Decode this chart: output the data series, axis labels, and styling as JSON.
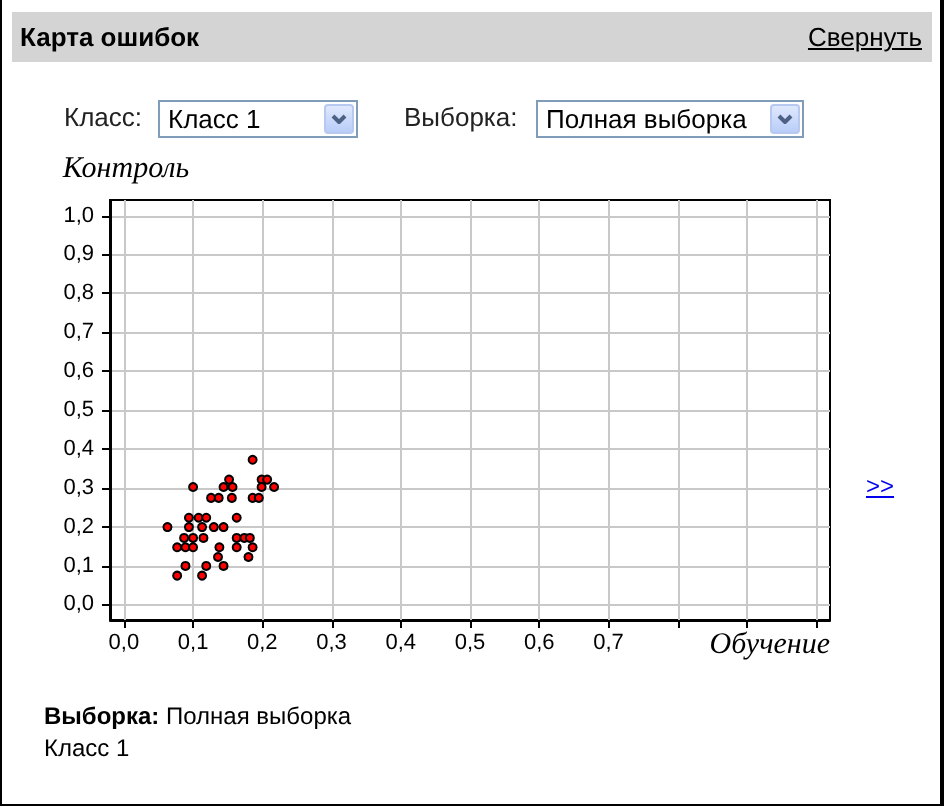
{
  "chart_data": {
    "type": "scatter",
    "title": "Карта ошибок",
    "xlabel": "Обучение",
    "ylabel": "Контроль",
    "x": [
      0.186,
      0.1,
      0.126,
      0.137,
      0.144,
      0.152,
      0.157,
      0.156,
      0.199,
      0.207,
      0.199,
      0.217,
      0.186,
      0.195,
      0.063,
      0.094,
      0.108,
      0.119,
      0.163,
      0.094,
      0.113,
      0.13,
      0.144,
      0.087,
      0.1,
      0.115,
      0.163,
      0.174,
      0.182,
      0.077,
      0.089,
      0.1,
      0.138,
      0.163,
      0.186,
      0.136,
      0.18,
      0.089,
      0.119,
      0.144,
      0.077,
      0.113
    ],
    "values": [
      0.372,
      0.302,
      0.274,
      0.274,
      0.302,
      0.321,
      0.302,
      0.274,
      0.321,
      0.321,
      0.302,
      0.302,
      0.274,
      0.274,
      0.199,
      0.223,
      0.223,
      0.223,
      0.223,
      0.199,
      0.199,
      0.199,
      0.199,
      0.171,
      0.171,
      0.171,
      0.171,
      0.171,
      0.171,
      0.147,
      0.147,
      0.147,
      0.147,
      0.147,
      0.147,
      0.122,
      0.122,
      0.099,
      0.099,
      0.099,
      0.074,
      0.074
    ],
    "color": "#ff0000",
    "marker": "circle",
    "xlim": [
      -0.02,
      1.02
    ],
    "ylim": [
      -0.04,
      1.04
    ],
    "xticks": [
      {
        "value": 0,
        "label": "0,0"
      },
      {
        "value": 0.1,
        "label": "0,1"
      },
      {
        "value": 0.2,
        "label": "0,2"
      },
      {
        "value": 0.3,
        "label": "0,3"
      },
      {
        "value": 0.4,
        "label": "0,4"
      },
      {
        "value": 0.5,
        "label": "0,5"
      },
      {
        "value": 0.6,
        "label": "0,6"
      },
      {
        "value": 0.7,
        "label": "0,7"
      },
      {
        "value": 0.8,
        "label": null
      },
      {
        "value": 0.9,
        "label": null
      },
      {
        "value": 1,
        "label": null
      }
    ],
    "yticks": [
      {
        "value": 0,
        "label": "0,0"
      },
      {
        "value": 0.1,
        "label": "0,1"
      },
      {
        "value": 0.2,
        "label": "0,2"
      },
      {
        "value": 0.3,
        "label": "0,3"
      },
      {
        "value": 0.4,
        "label": "0,4"
      },
      {
        "value": 0.5,
        "label": "0,5"
      },
      {
        "value": 0.6,
        "label": "0,6"
      },
      {
        "value": 0.7,
        "label": "0,7"
      },
      {
        "value": 0.8,
        "label": "0,8"
      },
      {
        "value": 0.9,
        "label": "0,9"
      },
      {
        "value": 1,
        "label": "1,0"
      }
    ],
    "grid": true,
    "annotations": [
      "Свернуть",
      "Класс:",
      "Класс 1",
      "Выборка:",
      "Полная выборка",
      ">>",
      "Выборка:",
      "Полная выборка",
      "Класс 1"
    ]
  }
}
